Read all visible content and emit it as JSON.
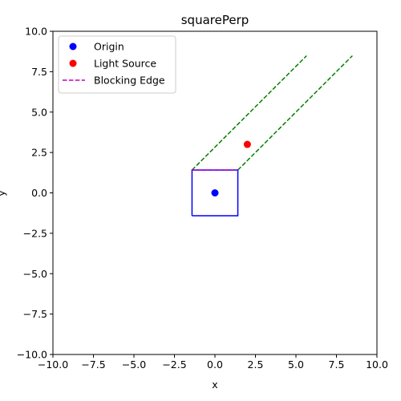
{
  "chart_data": {
    "type": "scatter",
    "title": "squarePerp",
    "xlabel": "x",
    "ylabel": "y",
    "xlim": [
      -10,
      10
    ],
    "ylim": [
      -10,
      10
    ],
    "xticks": [
      -10,
      -7.5,
      -5,
      -2.5,
      0,
      2.5,
      5,
      7.5,
      10
    ],
    "yticks": [
      -10,
      -7.5,
      -5,
      -2.5,
      0,
      2.5,
      5,
      7.5,
      10
    ],
    "xtick_labels": [
      "−10.0",
      "−7.5",
      "−5.0",
      "−2.5",
      "0.0",
      "2.5",
      "5.0",
      "7.5",
      "10.0"
    ],
    "ytick_labels": [
      "−10.0",
      "−7.5",
      "−5.0",
      "−2.5",
      "0.0",
      "2.5",
      "5.0",
      "7.5",
      "10.0"
    ],
    "grid": false,
    "legend_position": "top-left",
    "series": [
      {
        "name": "Origin",
        "kind": "point",
        "color": "#0000ff",
        "points": [
          [
            0,
            0
          ]
        ]
      },
      {
        "name": "Light Source",
        "kind": "point",
        "color": "#ff0000",
        "points": [
          [
            2,
            3
          ]
        ]
      },
      {
        "name": "Blocking Edge",
        "kind": "dashed-line",
        "color": "#bf00bf",
        "points": [
          [
            -1.414,
            1.414
          ],
          [
            1.414,
            1.414
          ]
        ]
      }
    ],
    "square": {
      "color": "#0000ff",
      "points": [
        [
          -1.414,
          -1.414
        ],
        [
          1.414,
          -1.414
        ],
        [
          1.414,
          1.414
        ],
        [
          -1.414,
          1.414
        ],
        [
          -1.414,
          -1.414
        ]
      ]
    },
    "shadow_lines": {
      "color": "#008000",
      "segments": [
        [
          [
            -1.414,
            1.414
          ],
          [
            5.657,
            8.485
          ]
        ],
        [
          [
            1.414,
            1.414
          ],
          [
            8.485,
            8.485
          ]
        ]
      ]
    }
  }
}
